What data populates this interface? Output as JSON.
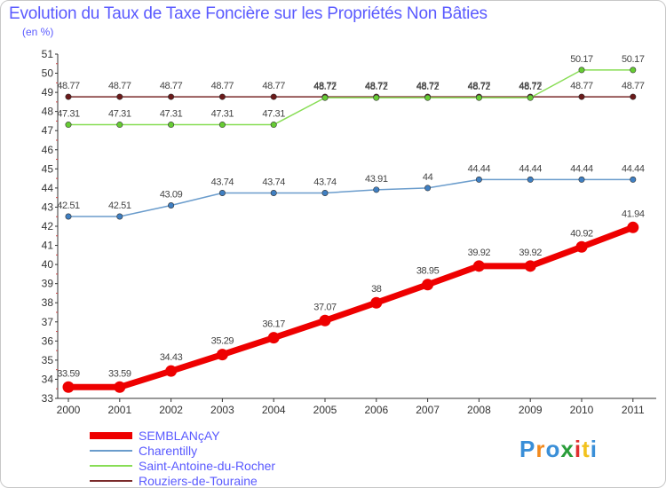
{
  "title": "Evolution du Taux de Taxe Foncière sur les Propriétés Non Bâties",
  "unit": "(en %)",
  "logo": {
    "letters": [
      "P",
      "r",
      "o",
      "x",
      "i",
      "t",
      "i"
    ],
    "colors": [
      "#3a8fd8",
      "#f28a1e",
      "#3a8fd8",
      "#2a9d3a",
      "#e03030",
      "#f2c21e",
      "#3a8fd8"
    ]
  },
  "chart_data": {
    "type": "line",
    "title": "Evolution du Taux de Taxe Foncière sur les Propriétés Non Bâties",
    "ylabel": "(en %)",
    "xlabel": "",
    "categories": [
      "2000",
      "2001",
      "2002",
      "2003",
      "2004",
      "2005",
      "2006",
      "2007",
      "2008",
      "2009",
      "2010",
      "2011"
    ],
    "ylim": [
      33,
      51
    ],
    "yticks": [
      33,
      34,
      35,
      36,
      37,
      38,
      39,
      40,
      41,
      42,
      43,
      44,
      45,
      46,
      47,
      48,
      49,
      50,
      51
    ],
    "series": [
      {
        "name": "SEMBLANçAY",
        "color": "#ee0000",
        "width": 7,
        "values": [
          33.59,
          33.59,
          34.43,
          35.29,
          36.17,
          37.07,
          38,
          38.95,
          39.92,
          39.92,
          40.92,
          41.94
        ],
        "labels": [
          "33.59",
          "33.59",
          "34.43",
          "35.29",
          "36.17",
          "37.07",
          "38",
          "38.95",
          "39.92",
          "39.92",
          "40.92",
          "41.94"
        ]
      },
      {
        "name": "Charentilly",
        "color": "#6a9ccc",
        "width": 1.5,
        "values": [
          42.51,
          42.51,
          43.09,
          43.74,
          43.74,
          43.74,
          43.91,
          44,
          44.44,
          44.44,
          44.44,
          44.44
        ],
        "labels": [
          "42.51",
          "42.51",
          "43.09",
          "43.74",
          "43.74",
          "43.74",
          "43.91",
          "44",
          "44.44",
          "44.44",
          "44.44",
          "44.44"
        ]
      },
      {
        "name": "Saint-Antoine-du-Rocher",
        "color": "#88dd55",
        "width": 1.5,
        "values": [
          47.31,
          47.31,
          47.31,
          47.31,
          47.31,
          48.72,
          48.72,
          48.72,
          48.72,
          48.72,
          50.17,
          50.17
        ],
        "labels": [
          "47.31",
          "47.31",
          "47.31",
          "47.31",
          "47.31",
          "48.72",
          "48.72",
          "48.72",
          "48.72",
          "48.72",
          "50.17",
          "50.17"
        ]
      },
      {
        "name": "Rouziers-de-Touraine",
        "color": "#7a2a2a",
        "width": 1.5,
        "values": [
          48.77,
          48.77,
          48.77,
          48.77,
          48.77,
          48.77,
          48.77,
          48.77,
          48.77,
          48.77,
          48.77,
          48.77
        ],
        "labels": [
          "48.77",
          "48.77",
          "48.77",
          "48.77",
          "48.77",
          "48.77",
          "48.77",
          "48.77",
          "48.77",
          "48.77",
          "48.77",
          "48.77"
        ]
      }
    ]
  }
}
